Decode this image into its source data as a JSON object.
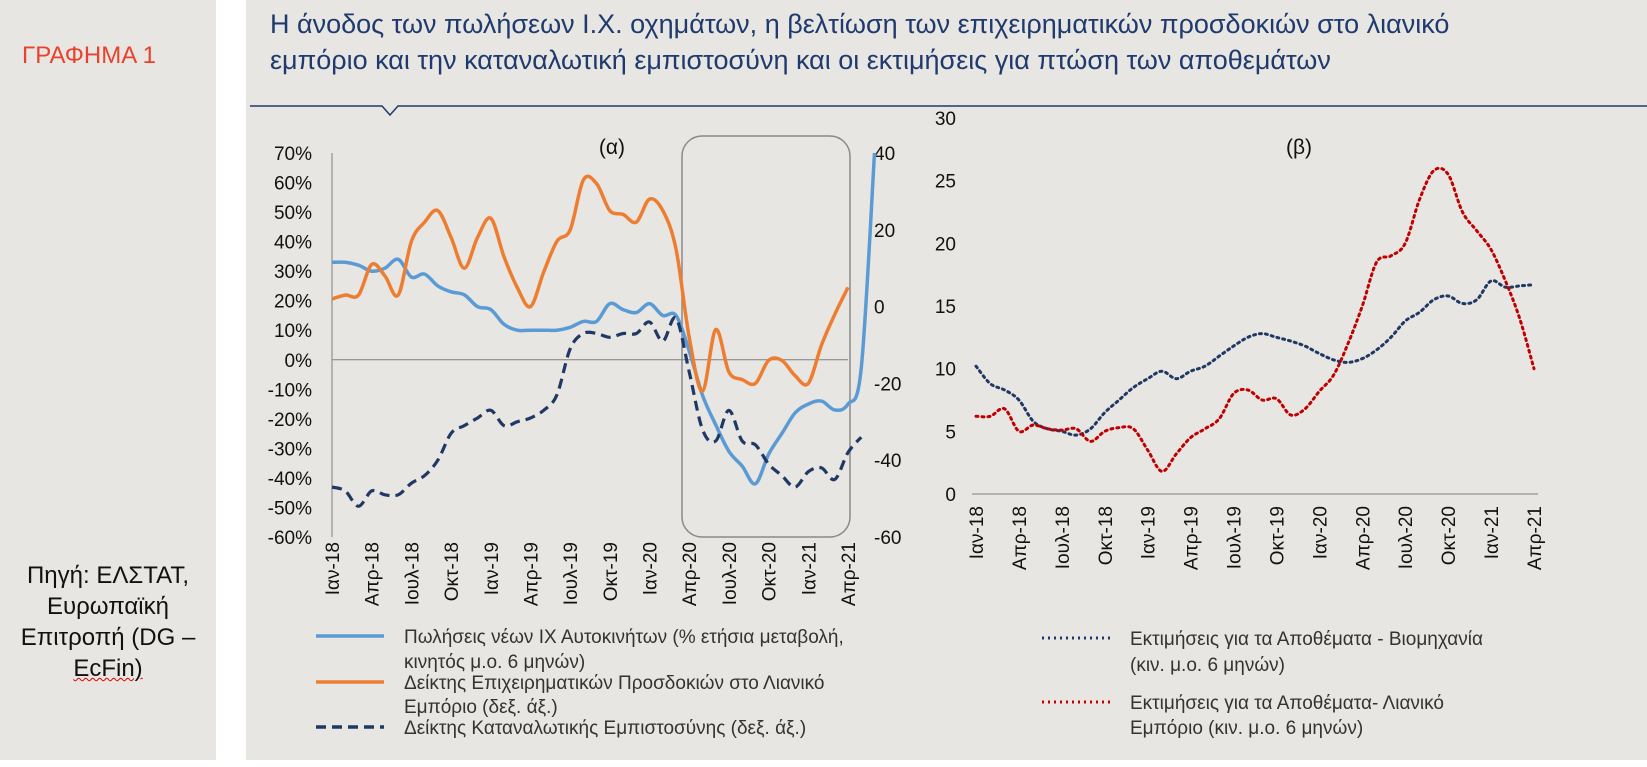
{
  "sidebar": {
    "label": "ΓΡΑΦΗΜΑ 1",
    "source_lines": [
      "Πηγή: ΕΛΣΤΑΤ,",
      "Ευρωπαϊκή",
      "Επιτροπή (DG –",
      "EcFin)"
    ]
  },
  "title": {
    "line1": "Η άνοδος των πωλήσεων Ι.Χ. οχημάτων, η βελτίωση των επιχειρηματικών προσδοκιών στο λιανικό",
    "line2": "εμπόριο και την καταναλωτική εμπιστοσύνη και οι εκτιμήσεις για πτώση των αποθεμάτων"
  },
  "colors": {
    "title": "#1f3a6e",
    "label": "#e8412c",
    "blue": "#5b9bd5",
    "orange": "#ed7d31",
    "navy": "#1f3864",
    "red": "#c00000"
  },
  "chart_data": [
    {
      "type": "line",
      "panel": "(α)",
      "x_ticks": [
        "Ιαν-18",
        "Απρ-18",
        "Ιουλ-18",
        "Οκτ-18",
        "Ιαν-19",
        "Απρ-19",
        "Ιουλ-19",
        "Οκτ-19",
        "Ιαν-20",
        "Απρ-20",
        "Ιουλ-20",
        "Οκτ-20",
        "Ιαν-21",
        "Απρ-21"
      ],
      "y_left": {
        "min": -60,
        "max": 70,
        "step": 10,
        "labels": [
          "70%",
          "60%",
          "50%",
          "40%",
          "30%",
          "20%",
          "10%",
          "0%",
          "-10%",
          "-20%",
          "-30%",
          "-40%",
          "-50%",
          "-60%"
        ]
      },
      "y_right": {
        "min": -60,
        "max": 40,
        "step": 20,
        "labels": [
          "40",
          "20",
          "0",
          "-20",
          "-40",
          "-60"
        ]
      },
      "highlight": {
        "from_month": 27,
        "to_month": 39
      },
      "series": [
        {
          "name": "Πωλήσεις νέων ΙΧ Αυτοκινήτων (% ετήσια μεταβολή, κινητός μ.ο. 6 μηνών)",
          "axis": "left",
          "color": "#5b9bd5",
          "values": [
            33,
            33,
            32,
            30,
            31,
            34,
            28,
            29,
            25,
            23,
            22,
            18,
            17,
            12,
            10,
            10,
            10,
            10,
            11,
            13,
            13,
            19,
            17,
            16,
            19,
            15,
            15,
            3,
            -12,
            -22,
            -31,
            -36,
            -42,
            -32,
            -25,
            -18,
            -15,
            -14,
            -17,
            -15,
            -3,
            70
          ]
        },
        {
          "name": "Δείκτης Επιχειρηματικών Προσδοκιών στο Λιανικό Εμπόριο (δεξ. άξ.)",
          "axis": "right",
          "color": "#ed7d31",
          "values": [
            2,
            3,
            3,
            11,
            8,
            3,
            17,
            22,
            25,
            18,
            10,
            18,
            23,
            13,
            5,
            0,
            9,
            17,
            20,
            33,
            32,
            25,
            24,
            22,
            28,
            25,
            15,
            -8,
            -22,
            -6,
            -17,
            -19,
            -20,
            -14,
            -14,
            -18,
            -20,
            -10,
            -2,
            5
          ]
        },
        {
          "name": "Δείκτης Καταναλωτικής Εμπιστοσύνης (δεξ. άξ.)",
          "axis": "right",
          "color": "#1f3864",
          "values": [
            -47,
            -48,
            -52,
            -48,
            -49,
            -49,
            -46,
            -44,
            -40,
            -33,
            -31,
            -29,
            -27,
            -31,
            -30,
            -29,
            -27,
            -23,
            -11,
            -7,
            -7,
            -8,
            -7,
            -7,
            -4,
            -9,
            -3,
            -17,
            -32,
            -35,
            -27,
            -35,
            -36,
            -41,
            -44,
            -47,
            -43,
            -42,
            -45,
            -38,
            -34
          ]
        }
      ]
    },
    {
      "type": "line",
      "panel": "(β)",
      "x_ticks": [
        "Ιαν-18",
        "Απρ-18",
        "Ιουλ-18",
        "Οκτ-18",
        "Ιαν-19",
        "Απρ-19",
        "Ιουλ-19",
        "Οκτ-19",
        "Ιαν-20",
        "Απρ-20",
        "Ιουλ-20",
        "Οκτ-20",
        "Ιαν-21",
        "Απρ-21"
      ],
      "y": {
        "min": 0,
        "max": 30,
        "step": 5,
        "labels": [
          "30",
          "25",
          "20",
          "15",
          "10",
          "5",
          "0"
        ]
      },
      "series": [
        {
          "name": "Εκτιμήσεις για τα Αποθέματα - Βιομηχανία (κιν. μ.ο. 6 μηνών)",
          "color": "#1f3864",
          "values": [
            10.2,
            8.8,
            8.3,
            7.5,
            5.8,
            5.2,
            5,
            4.7,
            5.2,
            6.5,
            7.5,
            8.5,
            9.2,
            9.8,
            9.2,
            9.8,
            10.2,
            11,
            11.8,
            12.5,
            12.8,
            12.5,
            12.2,
            11.8,
            11.2,
            10.7,
            10.5,
            10.8,
            11.5,
            12.5,
            13.8,
            14.5,
            15.5,
            15.8,
            15.2,
            15.5,
            17,
            16.5,
            16.6,
            16.7
          ]
        },
        {
          "name": "Εκτιμήσεις για τα Αποθέματα- Λιανικό Εμπόριο (κιν. μ.ο. 6 μηνών)",
          "color": "#c00000",
          "values": [
            6.2,
            6.2,
            6.8,
            5,
            5.5,
            5.2,
            5.1,
            5.2,
            4.2,
            5,
            5.3,
            5.2,
            3.5,
            1.8,
            3.2,
            4.5,
            5.2,
            6,
            8,
            8.3,
            7.5,
            7.6,
            6.3,
            6.8,
            8.2,
            9.5,
            12,
            15,
            18.5,
            19,
            20,
            23.5,
            25.8,
            25.5,
            22.5,
            21,
            19.5,
            17,
            14,
            10
          ]
        }
      ]
    }
  ],
  "legend_a": [
    {
      "line1": "Πωλήσεις νέων ΙΧ Αυτοκινήτων (% ετήσια μεταβολή,",
      "line2": "κινητός μ.ο. 6 μηνών)"
    },
    {
      "line1": "Δείκτης Επιχειρηματικών Προσδοκιών στο Λιανικό",
      "line2": "Εμπόριο (δεξ. άξ.)"
    },
    {
      "line1": "Δείκτης Καταναλωτικής Εμπιστοσύνης (δεξ. άξ.)",
      "line2": ""
    }
  ],
  "legend_b": [
    {
      "line1": "Εκτιμήσεις για τα Αποθέματα - Βιομηχανία",
      "line2": "(κιν. μ.ο. 6 μηνών)"
    },
    {
      "line1": "Εκτιμήσεις για τα Αποθέματα- Λιανικό",
      "line2": "Εμπόριο (κιν. μ.ο. 6 μηνών)"
    }
  ]
}
